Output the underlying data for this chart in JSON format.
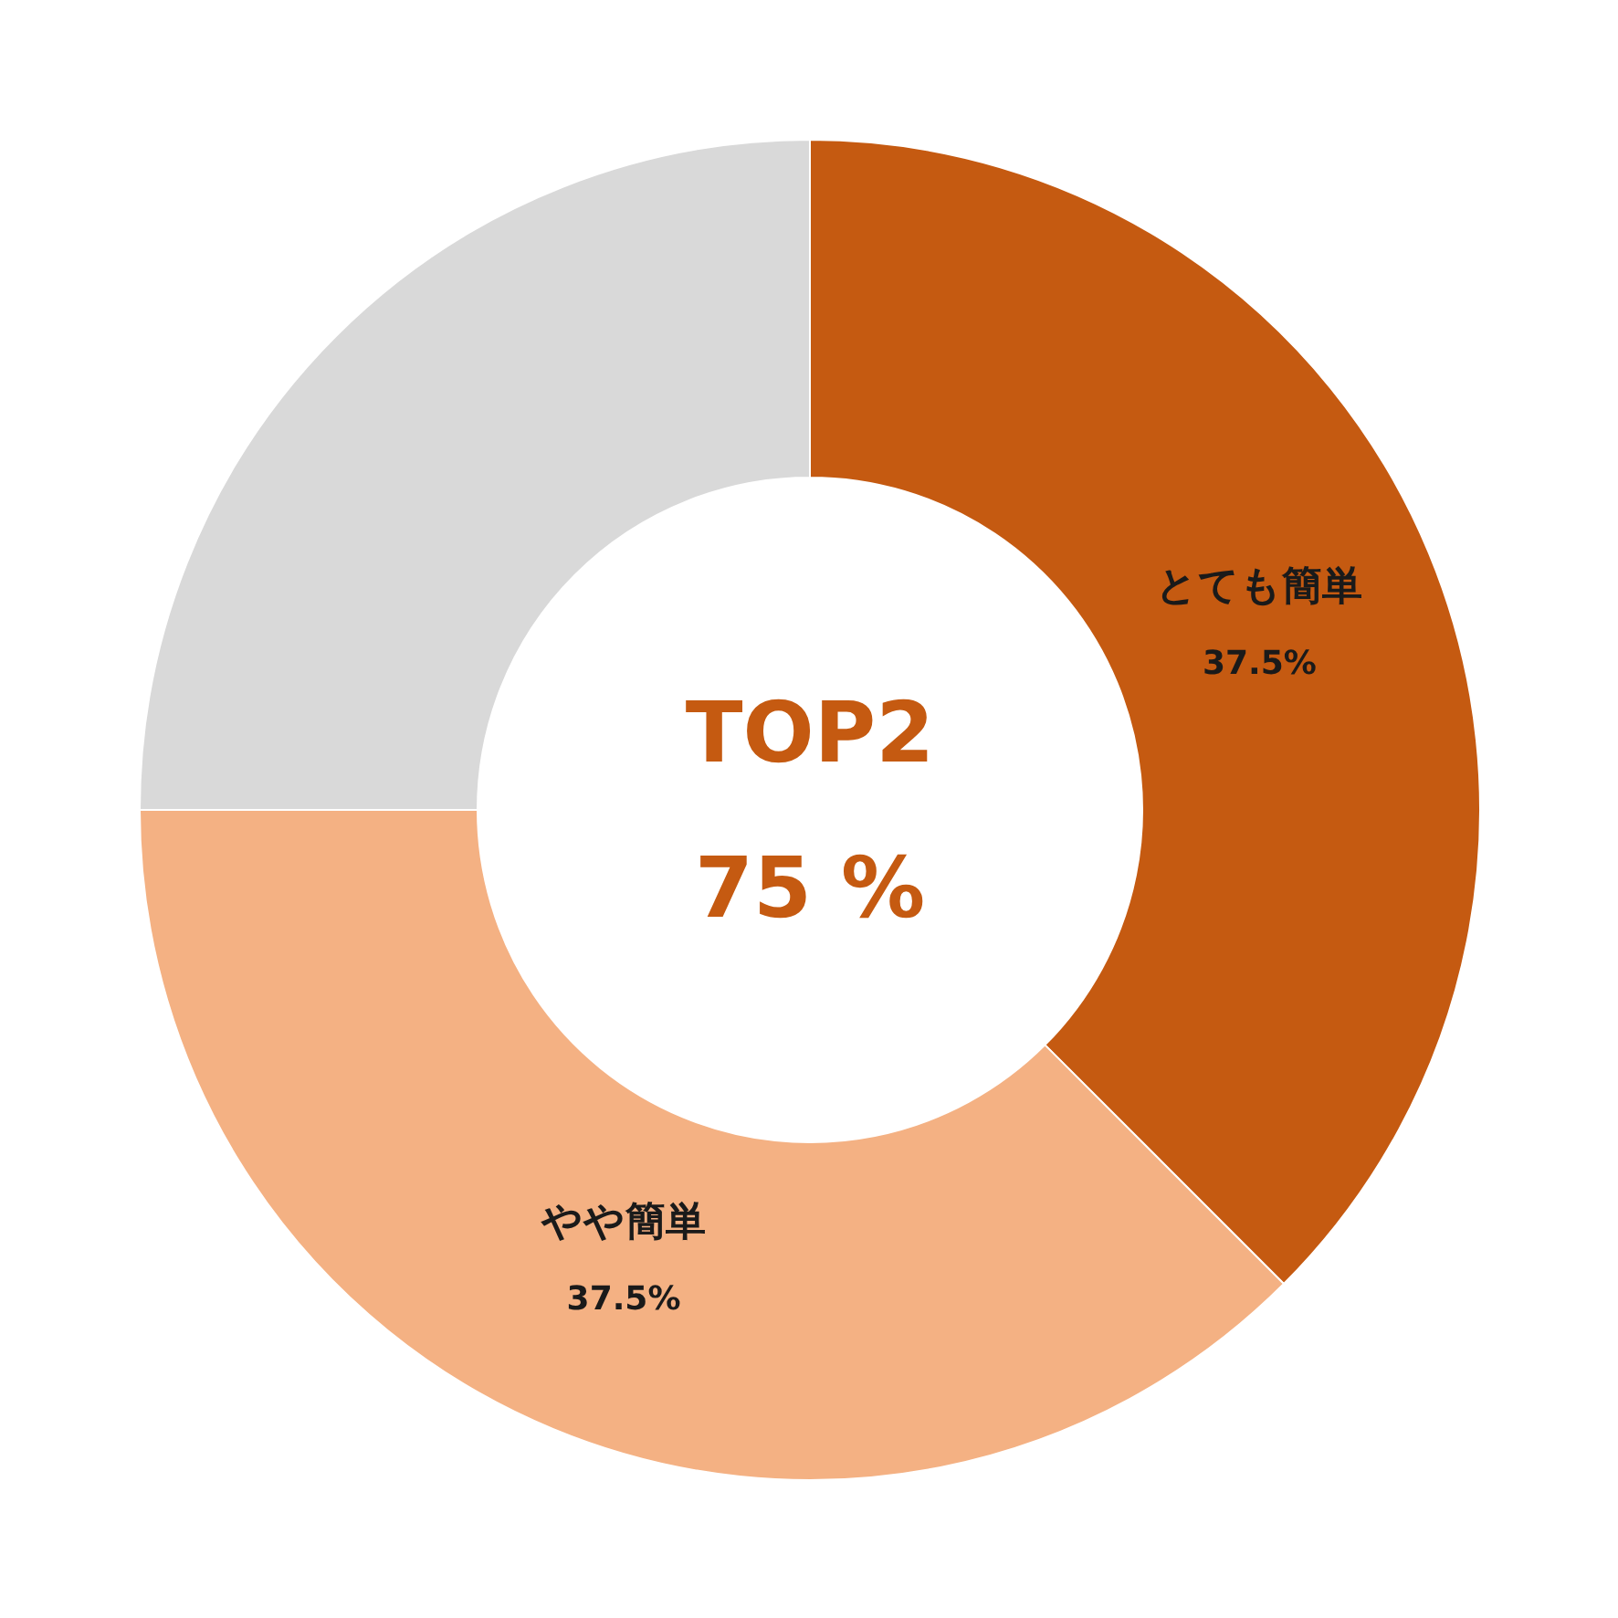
{
  "chart_data": {
    "type": "donut",
    "categories": [
      "とても簡単",
      "やや簡単",
      null
    ],
    "values": [
      37.5,
      37.5,
      25
    ],
    "colors": [
      "#c55a11",
      "#f4b183",
      "#d9d9d9"
    ],
    "value_labels": [
      "37.5%",
      "37.5%",
      null
    ],
    "annotations": [
      "TOP2",
      "75 %"
    ]
  }
}
